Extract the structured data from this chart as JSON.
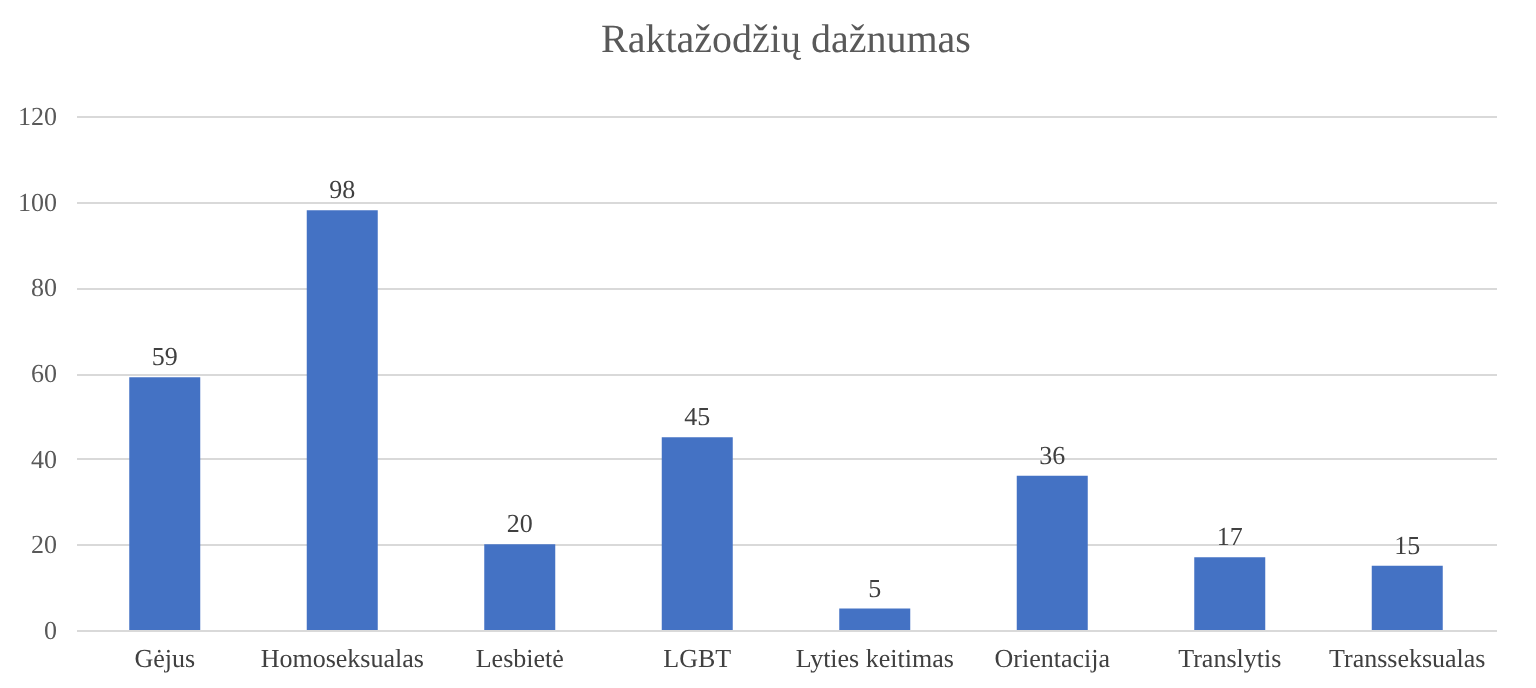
{
  "chart_data": {
    "type": "bar",
    "title": "Raktažodžių dažnumas",
    "categories": [
      "Gėjus",
      "Homoseksualas",
      "Lesbietė",
      "LGBT",
      "Lyties keitimas",
      "Orientacija",
      "Translytis",
      "Transseksualas"
    ],
    "values": [
      59,
      98,
      20,
      45,
      5,
      36,
      17,
      15
    ],
    "color": "#4472c4",
    "ylim": [
      0,
      120
    ],
    "yticks": [
      0,
      20,
      40,
      60,
      80,
      100,
      120
    ],
    "grid": "y",
    "data_labels": true
  }
}
